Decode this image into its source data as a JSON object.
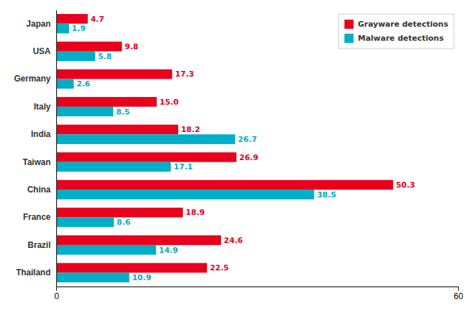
{
  "chart_data": {
    "type": "bar",
    "orientation": "horizontal",
    "categories": [
      "Japan",
      "USA",
      "Germany",
      "Italy",
      "India",
      "Taiwan",
      "China",
      "France",
      "Brazil",
      "Thailand"
    ],
    "series": [
      {
        "name": "Grayware detections",
        "color": "#e8001c",
        "values": [
          4.7,
          9.8,
          17.3,
          15.0,
          18.2,
          26.9,
          50.3,
          18.9,
          24.6,
          22.5
        ],
        "value_labels": [
          "4.7",
          "9.8",
          "17.3",
          "15.0",
          "18.2",
          "26.9",
          "50.3",
          "18.9",
          "24.6",
          "22.5"
        ]
      },
      {
        "name": "Malware detections",
        "color": "#00aec8",
        "values": [
          1.9,
          5.8,
          2.6,
          8.5,
          26.7,
          17.1,
          38.5,
          8.6,
          14.9,
          10.9
        ]
      }
    ],
    "xlim": [
      0,
      60
    ],
    "xticks": [
      0,
      60
    ],
    "grid": false,
    "legend": "top-right",
    "data_labels": true
  }
}
